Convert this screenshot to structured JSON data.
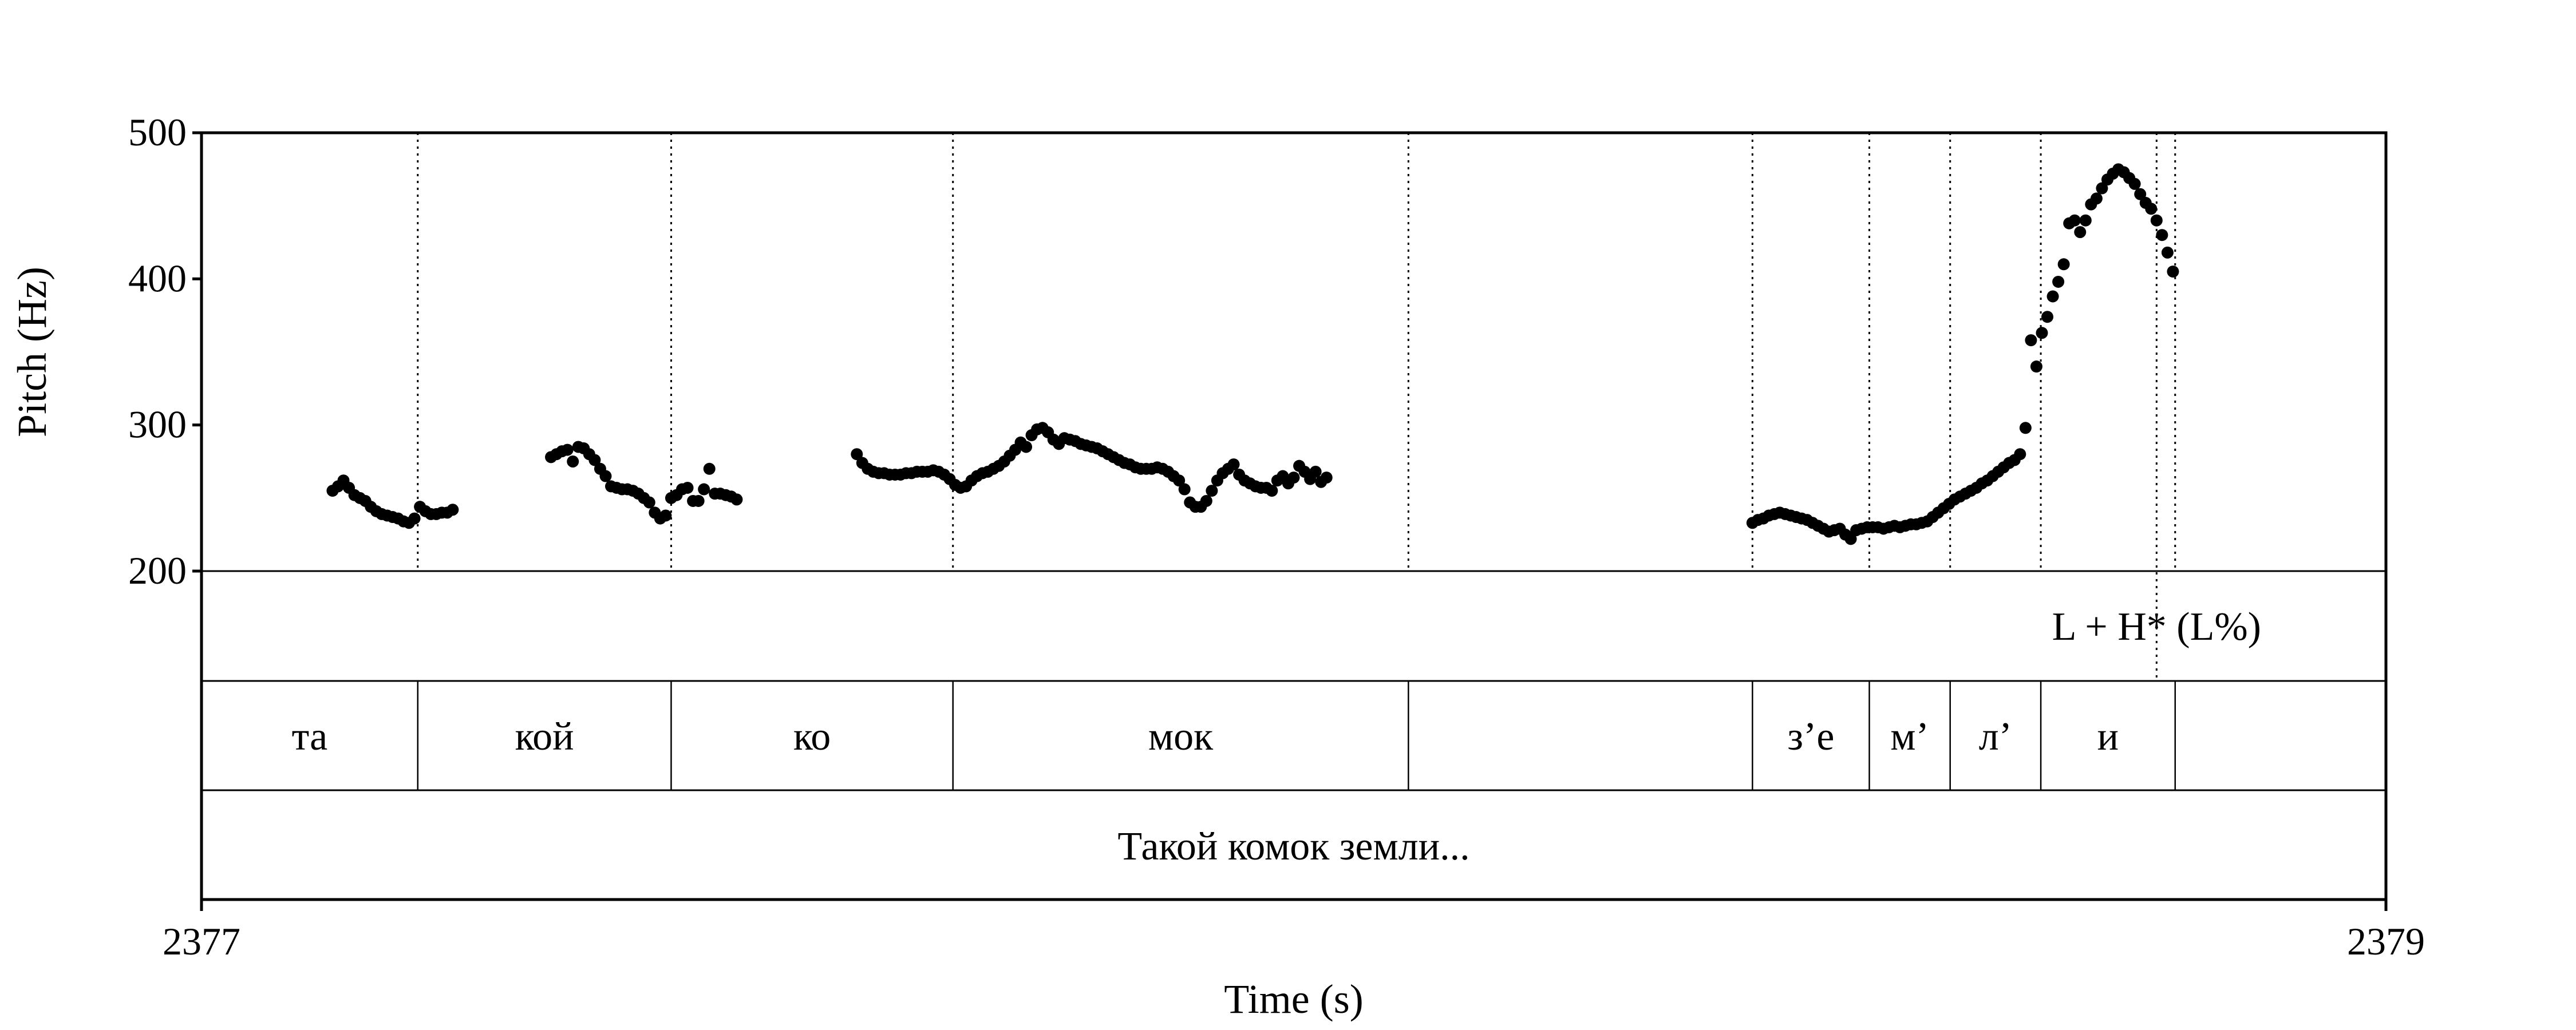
{
  "chart_data": {
    "type": "scatter",
    "xlabel": "Time (s)",
    "ylabel": "Pitch (Hz)",
    "x_range": [
      2377,
      2379
    ],
    "y_range": [
      200,
      500
    ],
    "x_tick_labels": [
      "2377",
      "2379"
    ],
    "y_tick_labels": [
      "200",
      "300",
      "400",
      "500"
    ],
    "y_ticks": [
      200,
      300,
      400,
      500
    ],
    "grid": false,
    "intonation_tier": [
      {
        "text": "L + H*  (L%)",
        "time": 2378.79
      }
    ],
    "syllable_tier": [
      {
        "text": "та",
        "start": 2377.0,
        "end": 2377.198
      },
      {
        "text": "кой",
        "start": 2377.198,
        "end": 2377.43
      },
      {
        "text": "ко",
        "start": 2377.43,
        "end": 2377.688
      },
      {
        "text": "мок",
        "start": 2377.688,
        "end": 2378.105
      },
      {
        "text": "",
        "start": 2378.105,
        "end": 2378.42
      },
      {
        "text": "з’е",
        "start": 2378.42,
        "end": 2378.527
      },
      {
        "text": "м’",
        "start": 2378.527,
        "end": 2378.601
      },
      {
        "text": "л’",
        "start": 2378.601,
        "end": 2378.684
      },
      {
        "text": "и",
        "start": 2378.684,
        "end": 2378.807
      },
      {
        "text": "",
        "start": 2378.807,
        "end": 2379.0
      }
    ],
    "phrase_tier": [
      {
        "text": "Такой комок земли...",
        "start": 2377.0,
        "end": 2379.0
      }
    ],
    "pitch_segments": [
      {
        "x": [
          2377.12,
          2377.125,
          2377.13,
          2377.135,
          2377.14,
          2377.145,
          2377.15,
          2377.155,
          2377.16,
          2377.165,
          2377.17,
          2377.175,
          2377.18,
          2377.185,
          2377.19,
          2377.195,
          2377.2,
          2377.205,
          2377.21,
          2377.215,
          2377.22,
          2377.225,
          2377.23
        ],
        "y": [
          255,
          258,
          262,
          257,
          252,
          250,
          248,
          244,
          241,
          239,
          238,
          237,
          236,
          234,
          233,
          236,
          244,
          241,
          239,
          239,
          240,
          240,
          242
        ]
      },
      {
        "x": [
          2377.32,
          2377.325,
          2377.33,
          2377.335,
          2377.34,
          2377.345,
          2377.35,
          2377.355,
          2377.36,
          2377.365,
          2377.37,
          2377.375,
          2377.38,
          2377.385,
          2377.39,
          2377.395,
          2377.4,
          2377.405,
          2377.41,
          2377.415,
          2377.42,
          2377.425,
          2377.43,
          2377.435,
          2377.44,
          2377.445,
          2377.45,
          2377.455,
          2377.46,
          2377.465,
          2377.47,
          2377.475,
          2377.48,
          2377.485,
          2377.49
        ],
        "y": [
          278,
          280,
          282,
          283,
          275,
          285,
          284,
          280,
          276,
          270,
          265,
          258,
          257,
          256,
          256,
          255,
          253,
          250,
          247,
          240,
          236,
          238,
          250,
          252,
          256,
          257,
          248,
          248,
          256,
          270,
          253,
          253,
          252,
          251,
          249
        ]
      },
      {
        "x": [
          2377.6,
          2377.605,
          2377.61,
          2377.615,
          2377.62,
          2377.625,
          2377.63,
          2377.635,
          2377.64,
          2377.645,
          2377.65,
          2377.655,
          2377.66,
          2377.665,
          2377.67,
          2377.675,
          2377.68,
          2377.685,
          2377.69,
          2377.695,
          2377.7,
          2377.705,
          2377.71,
          2377.715,
          2377.72,
          2377.725,
          2377.73,
          2377.735,
          2377.74,
          2377.745,
          2377.75,
          2377.755,
          2377.76,
          2377.765,
          2377.77,
          2377.775,
          2377.78,
          2377.785,
          2377.79,
          2377.795,
          2377.8,
          2377.805,
          2377.81,
          2377.815,
          2377.82,
          2377.825,
          2377.83,
          2377.835,
          2377.84,
          2377.845,
          2377.85,
          2377.855,
          2377.86,
          2377.865,
          2377.87,
          2377.875,
          2377.88,
          2377.885,
          2377.89,
          2377.895,
          2377.9,
          2377.905,
          2377.91,
          2377.915,
          2377.92,
          2377.925,
          2377.93,
          2377.935,
          2377.94,
          2377.945,
          2377.95,
          2377.955,
          2377.96,
          2377.965,
          2377.97,
          2377.975,
          2377.98,
          2377.985,
          2377.99,
          2377.995,
          2378.0,
          2378.005,
          2378.01,
          2378.015,
          2378.02,
          2378.025,
          2378.03
        ],
        "y": [
          280,
          274,
          270,
          268,
          267,
          267,
          266,
          266,
          266,
          267,
          267,
          268,
          268,
          268,
          269,
          268,
          266,
          263,
          259,
          257,
          258,
          262,
          265,
          267,
          268,
          270,
          272,
          275,
          279,
          283,
          288,
          285,
          293,
          297,
          298,
          295,
          290,
          287,
          291,
          290,
          289,
          287,
          286,
          285,
          284,
          282,
          280,
          278,
          276,
          274,
          273,
          271,
          270,
          270,
          270,
          271,
          270,
          268,
          265,
          262,
          256,
          247,
          244,
          244,
          248,
          255,
          262,
          267,
          270,
          273,
          266,
          262,
          260,
          258,
          257,
          257,
          255,
          262,
          265,
          260,
          264,
          272,
          268,
          263,
          268,
          261,
          264
        ]
      },
      {
        "x": [
          2378.42,
          2378.425,
          2378.43,
          2378.435,
          2378.44,
          2378.445,
          2378.45,
          2378.455,
          2378.46,
          2378.465,
          2378.47,
          2378.475,
          2378.48,
          2378.485,
          2378.49,
          2378.495,
          2378.5,
          2378.505,
          2378.51,
          2378.515,
          2378.52,
          2378.525,
          2378.53,
          2378.535,
          2378.54,
          2378.545,
          2378.55,
          2378.555,
          2378.56,
          2378.565,
          2378.57,
          2378.575,
          2378.58,
          2378.585,
          2378.59,
          2378.595,
          2378.6,
          2378.605,
          2378.61,
          2378.615,
          2378.62,
          2378.625,
          2378.63,
          2378.635,
          2378.64,
          2378.645,
          2378.65,
          2378.655,
          2378.66,
          2378.665,
          2378.67,
          2378.675,
          2378.68,
          2378.685,
          2378.69,
          2378.695,
          2378.7,
          2378.705,
          2378.71,
          2378.715,
          2378.72,
          2378.725,
          2378.73,
          2378.735,
          2378.74,
          2378.745,
          2378.75,
          2378.755,
          2378.76,
          2378.765,
          2378.77,
          2378.775,
          2378.78,
          2378.785,
          2378.79,
          2378.795,
          2378.8,
          2378.805
        ],
        "y": [
          233,
          235,
          236,
          238,
          239,
          240,
          239,
          238,
          237,
          236,
          235,
          233,
          231,
          229,
          227,
          228,
          229,
          225,
          222,
          228,
          229,
          230,
          230,
          230,
          229,
          230,
          231,
          230,
          231,
          232,
          232,
          233,
          234,
          237,
          240,
          243,
          246,
          249,
          251,
          253,
          255,
          257,
          260,
          262,
          265,
          268,
          271,
          274,
          276,
          280,
          298,
          358,
          340,
          363,
          374,
          388,
          398,
          410,
          438,
          440,
          432,
          440,
          451,
          455,
          462,
          468,
          472,
          475,
          473,
          469,
          465,
          458,
          452,
          448,
          440,
          430,
          418,
          405
        ]
      }
    ]
  }
}
